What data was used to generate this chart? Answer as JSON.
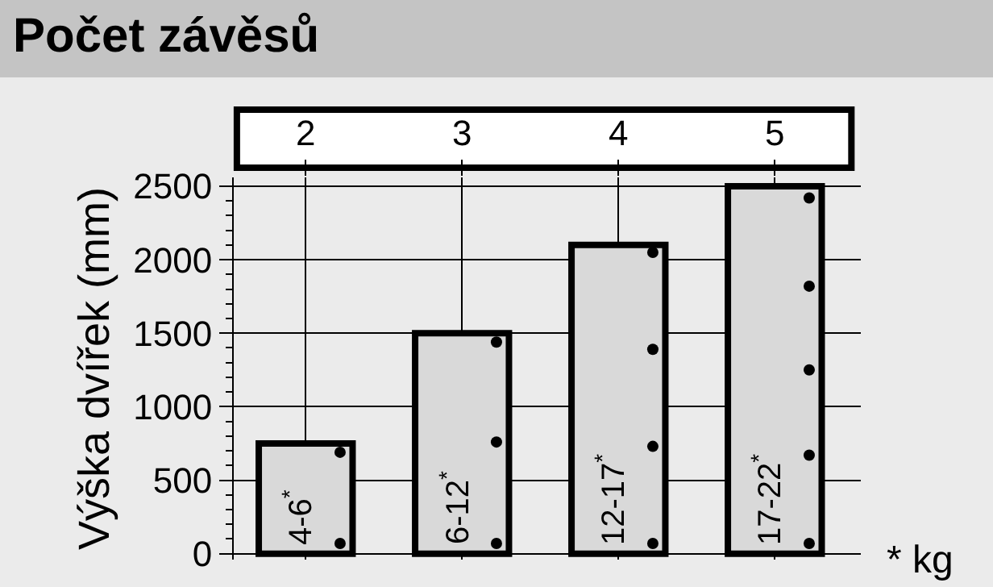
{
  "chart_data": {
    "type": "bar",
    "title": "Počet závěsů",
    "ylabel": "Výška dvířek (mm)",
    "categories": [
      "2",
      "3",
      "4",
      "5"
    ],
    "series": [
      {
        "color": "#d9d9d9",
        "values": [
          750,
          1500,
          2100,
          2500
        ]
      },
      {
        "type": "scatter",
        "color": "#000000",
        "x": [
          "2",
          "2",
          "3",
          "3",
          "3",
          "4",
          "4",
          "4",
          "4",
          "5",
          "5",
          "5",
          "5",
          "5"
        ],
        "values": [
          690,
          70,
          1440,
          760,
          70,
          2050,
          1390,
          730,
          70,
          2420,
          1820,
          1250,
          670,
          70
        ]
      }
    ],
    "marker": "circle",
    "ylim": [
      -40,
      2560
    ],
    "yticks": [
      0,
      500,
      1000,
      1500,
      2000,
      2500
    ],
    "grid": true,
    "legend": false,
    "annotations": [
      {
        "text": "4-6$^{*}$",
        "x": "2",
        "y": 40
      },
      {
        "text": "6-12$^{*}$",
        "x": "3",
        "y": 40
      },
      {
        "text": "12-17$^{*}$",
        "x": "4",
        "y": 40
      },
      {
        "text": "17-22$^{*}$",
        "x": "5",
        "y": 40
      },
      "* kg"
    ]
  }
}
